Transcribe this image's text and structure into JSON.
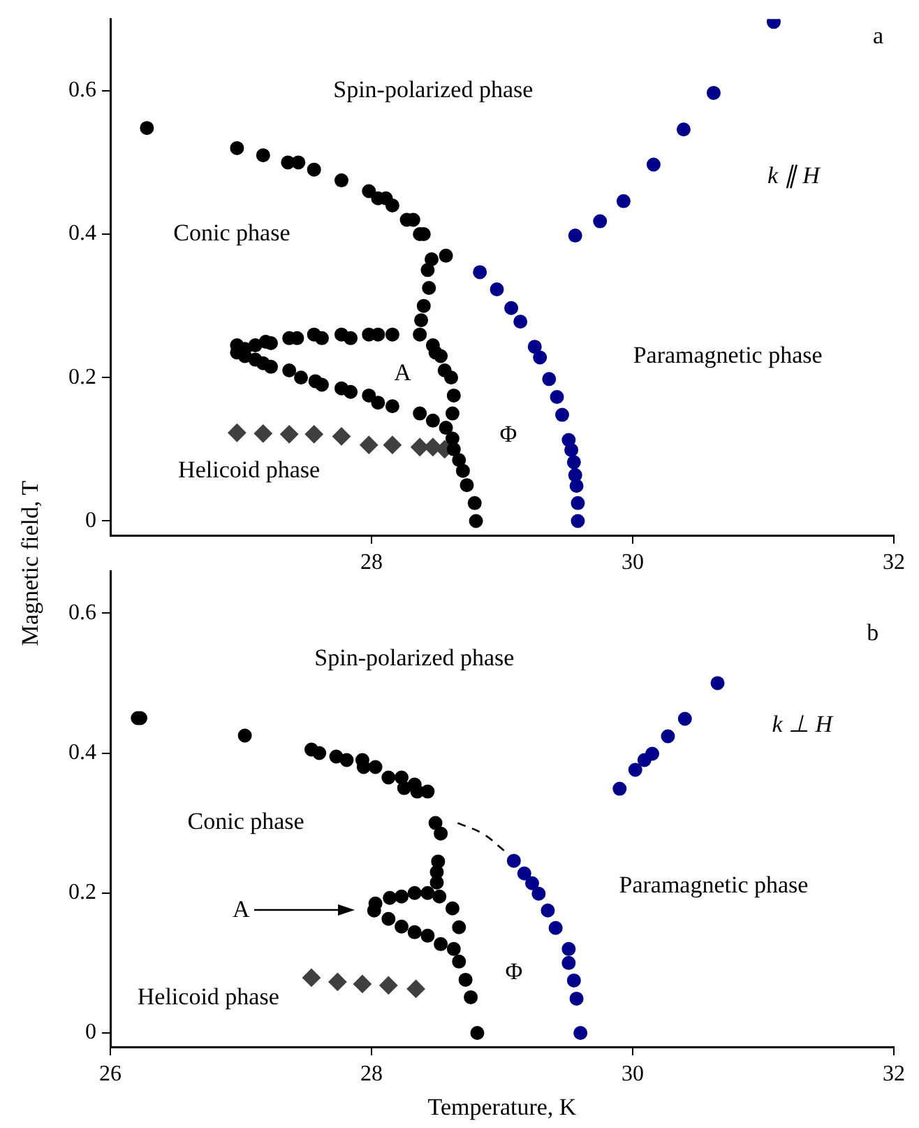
{
  "chart_data": [
    {
      "type": "scatter",
      "ylabel": "Magnetic field, T",
      "xlim": [
        26,
        32
      ],
      "ylim": [
        -0.02,
        0.7
      ],
      "xticks": [
        28,
        30,
        32
      ],
      "yticks": [
        0,
        0.2,
        0.4,
        0.6
      ],
      "grid": false,
      "legend": false,
      "marker": "circle",
      "series": [
        {
          "color": "#000000",
          "x": [
            26.28,
            26.97,
            27.17,
            27.36,
            27.44,
            27.56,
            27.77,
            27.98,
            28.05,
            28.11,
            28.16,
            28.27,
            28.32,
            28.37,
            28.4,
            28.57,
            28.46,
            28.43,
            28.44,
            28.4,
            28.38,
            28.37,
            28.47,
            28.49,
            28.53,
            28.56,
            28.61,
            28.63,
            28.62,
            28.57,
            28.62,
            28.63,
            28.67,
            28.7,
            28.73,
            28.79,
            28.8,
            26.97,
            27.03,
            27.11,
            27.19,
            27.23,
            27.37,
            27.43,
            27.56,
            27.62,
            27.77,
            27.84,
            27.98,
            28.05,
            28.16,
            26.97,
            27.03,
            27.11,
            27.17,
            27.23,
            27.37,
            27.46,
            27.57,
            27.62,
            27.77,
            27.84,
            27.98,
            28.05,
            28.16,
            28.37,
            28.47
          ],
          "values": [
            0.548,
            0.52,
            0.51,
            0.5,
            0.5,
            0.49,
            0.475,
            0.46,
            0.45,
            0.45,
            0.44,
            0.42,
            0.42,
            0.4,
            0.4,
            0.37,
            0.365,
            0.35,
            0.325,
            0.3,
            0.28,
            0.26,
            0.245,
            0.235,
            0.23,
            0.21,
            0.2,
            0.175,
            0.15,
            0.13,
            0.115,
            0.1,
            0.085,
            0.07,
            0.05,
            0.025,
            0,
            0.245,
            0.24,
            0.245,
            0.25,
            0.248,
            0.255,
            0.255,
            0.26,
            0.255,
            0.26,
            0.255,
            0.26,
            0.26,
            0.26,
            0.235,
            0.23,
            0.225,
            0.22,
            0.215,
            0.21,
            0.2,
            0.195,
            0.19,
            0.185,
            0.18,
            0.175,
            0.165,
            0.16,
            0.15,
            0.14
          ]
        },
        {
          "color": "#404040",
          "marker": "diamond",
          "x": [
            26.97,
            27.17,
            27.37,
            27.56,
            27.77,
            27.98,
            28.16,
            28.37,
            28.47,
            28.56
          ],
          "values": [
            0.123,
            0.122,
            0.121,
            0.121,
            0.118,
            0.106,
            0.106,
            0.103,
            0.103,
            0.1
          ]
        },
        {
          "color": "#00008b",
          "x": [
            28.83,
            28.96,
            29.07,
            29.14,
            29.25,
            29.29,
            29.36,
            29.42,
            29.46,
            29.51,
            29.53,
            29.55,
            29.56,
            29.57,
            29.58,
            29.58,
            29.56,
            29.75,
            29.93,
            30.16,
            30.39,
            30.62,
            31.08
          ],
          "values": [
            0.347,
            0.323,
            0.297,
            0.278,
            0.243,
            0.228,
            0.198,
            0.173,
            0.148,
            0.113,
            0.099,
            0.082,
            0.064,
            0.049,
            0.025,
            0,
            0.398,
            0.418,
            0.446,
            0.497,
            0.546,
            0.597,
            0.696
          ]
        }
      ],
      "annotations": [
        "Spin-polarized phase",
        "Conic phase",
        "Helicoid phase",
        "Paramagnetic phase",
        "A",
        "Φ",
        "k ∥ H",
        "a"
      ]
    },
    {
      "type": "scatter",
      "xlabel": "Temperature, K",
      "xlim": [
        26,
        32
      ],
      "ylim": [
        -0.02,
        0.66
      ],
      "xticks": [
        26,
        28,
        30,
        32
      ],
      "yticks": [
        0,
        0.2,
        0.4,
        0.6
      ],
      "grid": false,
      "legend": false,
      "marker": "circle",
      "series": [
        {
          "color": "#000000",
          "x": [
            26.21,
            26.23,
            27.03,
            27.54,
            27.6,
            27.73,
            27.81,
            27.93,
            27.94,
            28.03,
            28.13,
            28.23,
            28.25,
            28.33,
            28.35,
            28.43,
            28.49,
            28.53,
            28.51,
            28.5,
            28.5,
            28.52,
            28.03,
            28.14,
            28.23,
            28.33,
            28.43,
            28.02,
            28.13,
            28.23,
            28.33,
            28.43,
            28.53,
            28.63,
            28.62,
            28.67,
            28.67,
            28.72,
            28.76,
            28.81
          ],
          "values": [
            0.45,
            0.45,
            0.425,
            0.405,
            0.4,
            0.395,
            0.39,
            0.39,
            0.38,
            0.38,
            0.365,
            0.365,
            0.35,
            0.355,
            0.345,
            0.345,
            0.3,
            0.285,
            0.245,
            0.23,
            0.215,
            0.195,
            0.185,
            0.193,
            0.195,
            0.2,
            0.2,
            0.175,
            0.163,
            0.152,
            0.144,
            0.139,
            0.127,
            0.12,
            0.178,
            0.151,
            0.102,
            0.076,
            0.051,
            0
          ]
        },
        {
          "color": "#404040",
          "marker": "diamond",
          "x": [
            27.54,
            27.74,
            27.93,
            28.13,
            28.34
          ],
          "values": [
            0.079,
            0.073,
            0.07,
            0.068,
            0.063
          ]
        },
        {
          "color": "#00008b",
          "x": [
            29.9,
            30.02,
            30.09,
            30.15,
            30.27,
            30.4,
            30.65,
            29.09,
            29.17,
            29.23,
            29.28,
            29.35,
            29.41,
            29.51,
            29.51,
            29.55,
            29.57,
            29.6
          ],
          "values": [
            0.349,
            0.376,
            0.39,
            0.399,
            0.424,
            0.449,
            0.5,
            0.246,
            0.228,
            0.214,
            0.199,
            0.175,
            0.15,
            0.12,
            0.1,
            0.075,
            0.049,
            0
          ]
        },
        {
          "type": "line",
          "color": "#000000",
          "marker": "none",
          "line_style": "dashed",
          "x": [
            28.66,
            28.85,
            29.02
          ],
          "values": [
            0.3,
            0.285,
            0.26
          ]
        }
      ],
      "annotations": [
        "Spin-polarized phase",
        "Conic phase",
        "Helicoid phase",
        "Paramagnetic phase",
        "A",
        "Φ",
        "k ⊥ H",
        "b"
      ]
    }
  ]
}
